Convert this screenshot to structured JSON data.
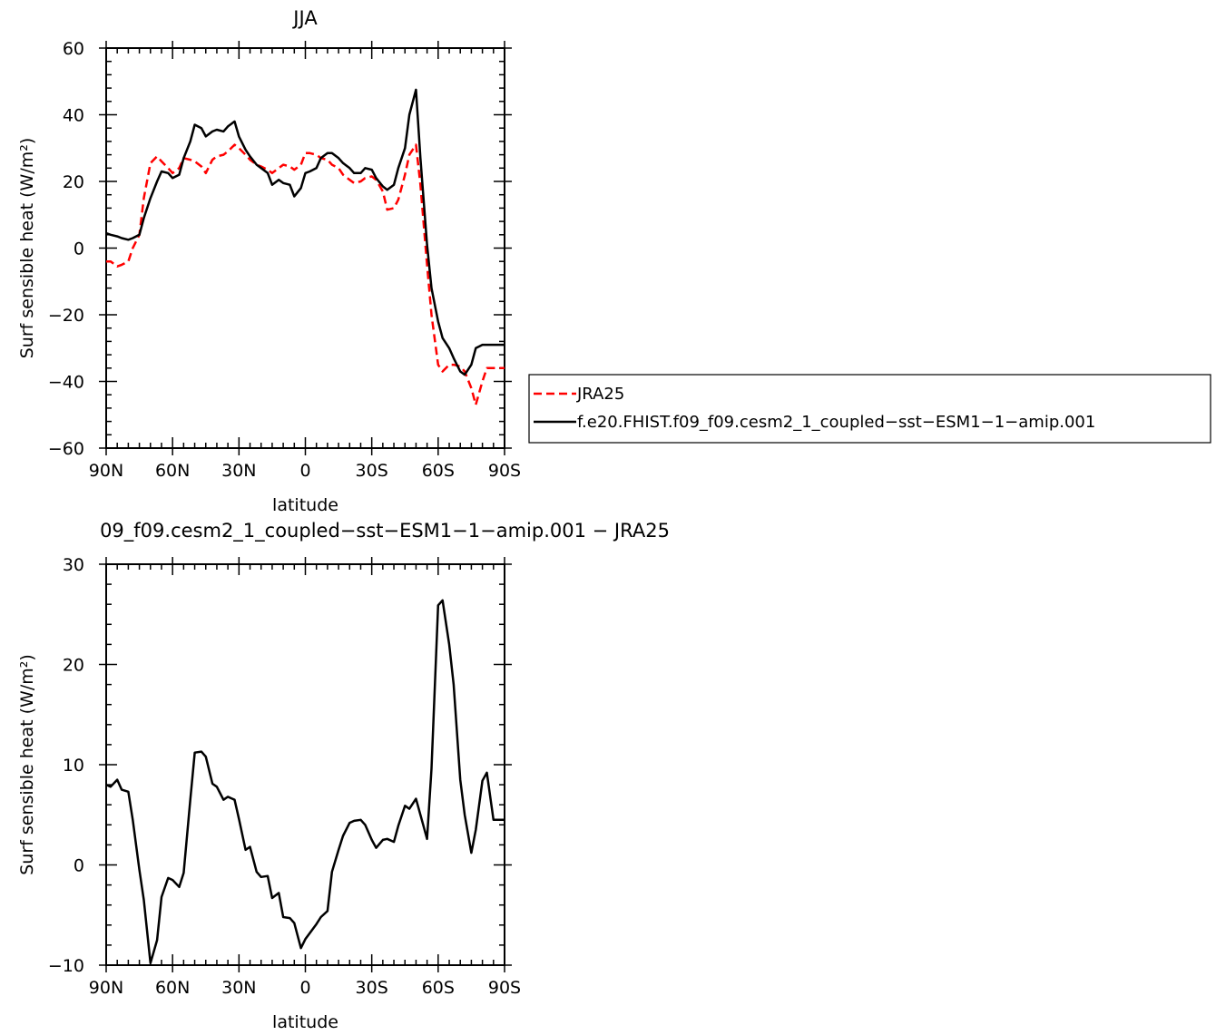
{
  "chart_data": [
    {
      "type": "line",
      "title": "JJA",
      "xlabel": "latitude",
      "ylabel": "Surf sensible heat (W/m²)",
      "ylim": [
        -60,
        60
      ],
      "xlim": [
        90,
        -90
      ],
      "xticks": [
        "90N",
        "60N",
        "30N",
        "0",
        "30S",
        "60S",
        "90S"
      ],
      "yticks": [
        "60",
        "40",
        "20",
        "0",
        "−20",
        "−40",
        "−60"
      ],
      "grid": false,
      "legend_position": "right",
      "series": [
        {
          "name": "JRA25",
          "color": "#ff0000",
          "dash": "dashed",
          "x": [
            90,
            88,
            85,
            83,
            80,
            78,
            75,
            73,
            70,
            67,
            65,
            62,
            60,
            57,
            55,
            52,
            50,
            47,
            45,
            42,
            40,
            37,
            35,
            32,
            30,
            27,
            25,
            22,
            20,
            17,
            15,
            12,
            10,
            7,
            5,
            2,
            0,
            -2,
            -5,
            -7,
            -10,
            -12,
            -15,
            -17,
            -20,
            -22,
            -25,
            -27,
            -30,
            -32,
            -35,
            -37,
            -40,
            -42,
            -45,
            -47,
            -50,
            -52,
            -55,
            -57,
            -60,
            -62,
            -65,
            -67,
            -70,
            -72,
            -75,
            -77,
            -80,
            -82,
            -85,
            -87,
            -90
          ],
          "y": [
            -4,
            -4,
            -5.5,
            -5,
            -4,
            0,
            4,
            15,
            25.5,
            27.5,
            26,
            24,
            22.5,
            24,
            27,
            26.5,
            26,
            24.5,
            22.5,
            26.5,
            27.5,
            28,
            29,
            31,
            30,
            28,
            26.5,
            25,
            24.5,
            23.5,
            22.5,
            24,
            25,
            24.5,
            23.5,
            25,
            28.5,
            28.5,
            28,
            27,
            26.5,
            25,
            24,
            22,
            20.5,
            19.5,
            20,
            21,
            21.5,
            20.5,
            17,
            11.5,
            12,
            14.5,
            22,
            28,
            31,
            19,
            -5,
            -20,
            -35,
            -37,
            -35,
            -35,
            -35.5,
            -37,
            -42,
            -47,
            -40,
            -36,
            -36,
            -36,
            -36
          ]
        },
        {
          "name": "f.e20.FHIST.f09_f09.cesm2_1_coupled−sst−ESM1−1−amip.001",
          "color": "#000000",
          "dash": "solid",
          "x": [
            90,
            88,
            85,
            83,
            80,
            78,
            75,
            73,
            70,
            67,
            65,
            62,
            60,
            57,
            55,
            52,
            50,
            47,
            45,
            42,
            40,
            37,
            35,
            32,
            30,
            27,
            25,
            22,
            20,
            17,
            15,
            12,
            10,
            7,
            5,
            2,
            0,
            -2,
            -5,
            -7,
            -10,
            -12,
            -15,
            -17,
            -20,
            -22,
            -25,
            -27,
            -30,
            -32,
            -35,
            -37,
            -40,
            -42,
            -45,
            -47,
            -50,
            -52,
            -55,
            -57,
            -60,
            -62,
            -65,
            -67,
            -70,
            -72,
            -75,
            -77,
            -80,
            -82,
            -85,
            -87,
            -90
          ],
          "y": [
            4.5,
            4,
            3.5,
            3,
            2.5,
            3,
            4,
            9,
            15,
            20,
            23,
            22.5,
            21,
            22,
            27,
            32,
            37,
            36,
            33.5,
            35,
            35.5,
            35,
            36.5,
            38,
            33.5,
            29.5,
            27.5,
            25,
            24,
            22.5,
            19,
            20.5,
            19.5,
            19,
            15.5,
            18,
            22.5,
            23,
            24,
            27,
            28.5,
            28.5,
            27,
            25.5,
            24,
            22.5,
            22.5,
            24,
            23.5,
            21,
            18.5,
            17.5,
            19,
            24,
            30,
            40,
            47.5,
            27,
            1,
            -12,
            -22,
            -27,
            -30,
            -33,
            -37,
            -38,
            -35,
            -30,
            -29,
            -29,
            -29,
            -29,
            -29
          ]
        }
      ]
    },
    {
      "type": "line",
      "title": "09_f09.cesm2_1_coupled−sst−ESM1−1−amip.001 − JRA25",
      "xlabel": "latitude",
      "ylabel": "Surf sensible heat (W/m²)",
      "ylim": [
        -10,
        30
      ],
      "xlim": [
        90,
        -90
      ],
      "xticks": [
        "90N",
        "60N",
        "30N",
        "0",
        "30S",
        "60S",
        "90S"
      ],
      "yticks": [
        "30",
        "20",
        "10",
        "0",
        "−10"
      ],
      "grid": false,
      "series": [
        {
          "color": "#000000",
          "dash": "solid",
          "x": [
            90,
            88,
            85,
            83,
            80,
            78,
            75,
            73,
            70,
            67,
            65,
            62,
            60,
            57,
            55,
            52,
            50,
            47,
            45,
            42,
            40,
            37,
            35,
            32,
            30,
            27,
            25,
            22,
            20,
            17,
            15,
            12,
            10,
            7,
            5,
            2,
            0,
            -2,
            -5,
            -7,
            -10,
            -12,
            -15,
            -17,
            -20,
            -22,
            -25,
            -27,
            -30,
            -32,
            -35,
            -37,
            -40,
            -42,
            -45,
            -47,
            -50,
            -52,
            -55,
            -57,
            -60,
            -62,
            -65,
            -67,
            -70,
            -72,
            -75,
            -77,
            -80,
            -82,
            -85,
            -87,
            -90
          ],
          "y": [
            8,
            7.8,
            8.5,
            7.5,
            7.3,
            4.5,
            -0.5,
            -3.5,
            -9.8,
            -7.5,
            -3.2,
            -1.3,
            -1.5,
            -2.2,
            -0.8,
            6.5,
            11.2,
            11.3,
            10.8,
            8.1,
            7.8,
            6.5,
            6.8,
            6.5,
            4.6,
            1.5,
            1.8,
            -0.7,
            -1.2,
            -1.1,
            -3.3,
            -2.8,
            -5.2,
            -5.3,
            -5.8,
            -8.3,
            -7.4,
            -6.8,
            -5.9,
            -5.2,
            -4.6,
            -0.7,
            1.5,
            2.9,
            4.2,
            4.4,
            4.5,
            4,
            2.5,
            1.7,
            2.5,
            2.6,
            2.3,
            3.9,
            5.9,
            5.6,
            6.6,
            5,
            2.6,
            9.6,
            25.9,
            26.4,
            22,
            18,
            8.5,
            5,
            1.2,
            3.5,
            8.4,
            9.2,
            4.5,
            4.5,
            4.5
          ]
        }
      ]
    }
  ],
  "legend": {
    "items": [
      {
        "label": "JRA25"
      },
      {
        "label": "f.e20.FHIST.f09_f09.cesm2_1_coupled−sst−ESM1−1−amip.001"
      }
    ]
  }
}
